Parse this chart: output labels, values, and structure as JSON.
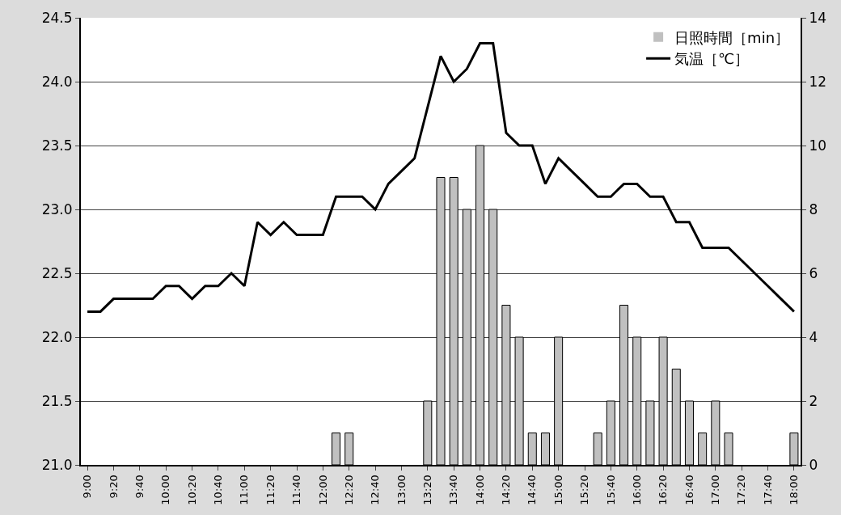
{
  "chart_data": {
    "type": "bar",
    "categories": [
      "9:00",
      null,
      "9:20",
      null,
      "9:40",
      null,
      "10:00",
      null,
      "10:20",
      null,
      "10:40",
      null,
      "11:00",
      null,
      "11:20",
      null,
      "11:40",
      null,
      "12:00",
      null,
      "12:20",
      null,
      "12:40",
      null,
      "13:00",
      null,
      "13:20",
      null,
      "13:40",
      null,
      "14:00",
      null,
      "14:20",
      null,
      "14:40",
      null,
      "15:00",
      null,
      "15:20",
      null,
      "15:40",
      null,
      "16:00",
      null,
      "16:20",
      null,
      "16:40",
      null,
      "17:00",
      null,
      "17:20",
      null,
      "17:40",
      null,
      "18:00"
    ],
    "series": [
      {
        "name": "日照時間［min］",
        "axis": "y2",
        "color": "#c0c0c0",
        "values": [
          0,
          0,
          0,
          0,
          0,
          0,
          0,
          0,
          0,
          0,
          0,
          0,
          0,
          0,
          0,
          0,
          0,
          0,
          0,
          1,
          1,
          0,
          0,
          0,
          0,
          0,
          2,
          9,
          9,
          8,
          10,
          8,
          5,
          4,
          1,
          1,
          4,
          0,
          0,
          1,
          2,
          5,
          4,
          2,
          4,
          3,
          2,
          1,
          2,
          1,
          0,
          0,
          0,
          0,
          1
        ]
      },
      {
        "name": "気温［℃］",
        "type": "line",
        "color": "#000000",
        "values": [
          22.2,
          22.2,
          22.3,
          22.3,
          22.3,
          22.3,
          22.4,
          22.4,
          22.3,
          22.4,
          22.4,
          22.5,
          22.4,
          22.9,
          22.8,
          22.9,
          22.8,
          22.8,
          22.8,
          23.1,
          23.1,
          23.1,
          23.0,
          23.2,
          23.3,
          23.4,
          23.8,
          24.2,
          24.0,
          24.1,
          24.3,
          24.3,
          23.6,
          23.5,
          23.5,
          23.2,
          23.4,
          23.3,
          23.2,
          23.1,
          23.1,
          23.2,
          23.2,
          23.1,
          23.1,
          22.9,
          22.9,
          22.7,
          22.7,
          22.7,
          22.6,
          22.5,
          22.4,
          22.3,
          22.2
        ]
      }
    ],
    "ylim": [
      21,
      24.5
    ],
    "yticks": [
      {
        "value": 21,
        "label": "21.0"
      },
      21.5,
      {
        "value": 22,
        "label": "22.0"
      },
      22.5,
      {
        "value": 23,
        "label": "23.0"
      },
      23.5,
      {
        "value": 24,
        "label": "24.0"
      },
      24.5
    ],
    "y2lim": [
      0,
      14
    ],
    "y2ticks": [
      0,
      2,
      4,
      6,
      8,
      10,
      12,
      14
    ],
    "grid": "y",
    "legend": "top right",
    "marker": "none",
    "line_style": "solid"
  }
}
